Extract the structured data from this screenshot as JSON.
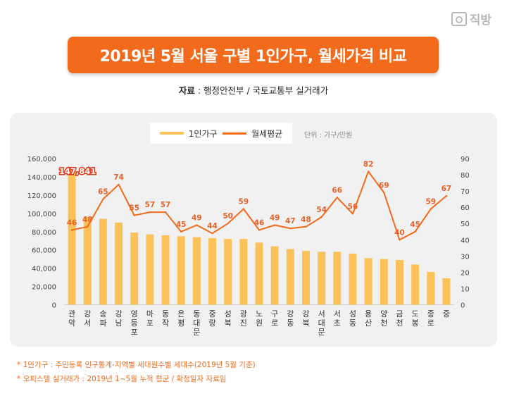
{
  "brand": {
    "name": "직방",
    "icon": "house-logo-icon"
  },
  "title": "2019년 5월 서울 구별 1인가구, 월세가격 비교",
  "source": {
    "label": "자료",
    "text": " : 행정안전부 / 국토교통부 실거래가"
  },
  "legend": {
    "bar_label": "1인가구",
    "line_label": "월세평균",
    "unit": "단위 : 가구/만원"
  },
  "notes": [
    "* 1인가구 : 주민등록 인구통계-지역별 세대원수별 세대수(2019년 5월 기준)",
    "* 오피스텔 실거래가 : 2019년 1~5월 누적 평균 / 확정일자 자료임"
  ],
  "colors": {
    "bar": "#fbc25a",
    "line": "#f26a1b",
    "banner": "#f26a1b",
    "label": "#e8622a"
  },
  "chart_data": {
    "type": "bar+line",
    "categories": [
      "관악",
      "강서",
      "송파",
      "강남",
      "영등포",
      "마포",
      "동작",
      "은평",
      "동대문",
      "중랑",
      "성북",
      "광진",
      "노원",
      "구로",
      "강동",
      "강북",
      "서대문",
      "서초",
      "성동",
      "용산",
      "양천",
      "금천",
      "도봉",
      "종로",
      "중"
    ],
    "series": [
      {
        "name": "1인가구",
        "type": "bar",
        "axis": "left",
        "values": [
          147841,
          96000,
          94000,
          90000,
          79000,
          77000,
          76000,
          75000,
          74000,
          73000,
          72000,
          72000,
          68000,
          64000,
          61000,
          59000,
          58000,
          58000,
          56000,
          51000,
          50000,
          49000,
          44000,
          36000,
          29000
        ]
      },
      {
        "name": "월세평균",
        "type": "line",
        "axis": "right",
        "values": [
          46,
          48,
          65,
          74,
          55,
          57,
          57,
          45,
          49,
          44,
          50,
          59,
          46,
          49,
          47,
          48,
          54,
          66,
          56,
          82,
          69,
          40,
          45,
          59,
          67
        ]
      }
    ],
    "highlight_label": "147,841",
    "y_left": {
      "min": 0,
      "max": 160000,
      "ticks": [
        "0",
        "20,000",
        "40,000",
        "60,000",
        "80,000",
        "100,000",
        "120,000",
        "140,000",
        "160,000"
      ]
    },
    "y_right": {
      "min": 0,
      "max": 90,
      "ticks": [
        "0",
        "10",
        "20",
        "30",
        "40",
        "50",
        "60",
        "70",
        "80",
        "90"
      ]
    },
    "grid": false
  }
}
